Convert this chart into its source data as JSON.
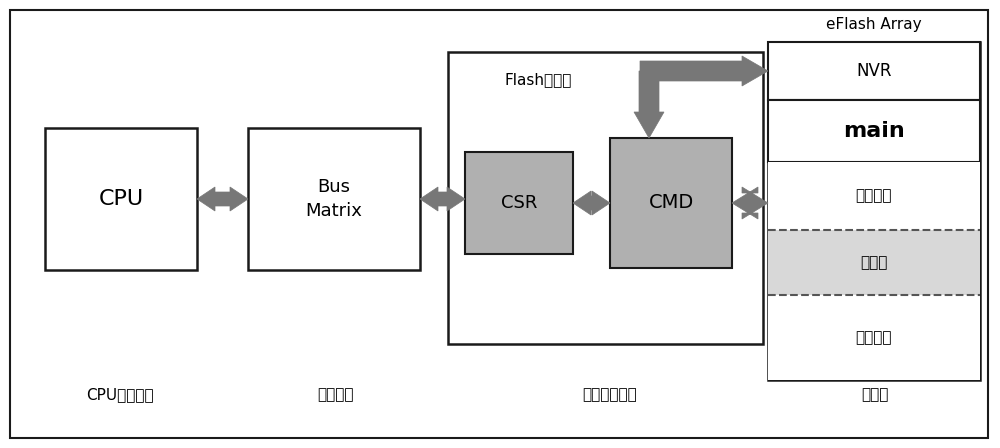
{
  "background_color": "#ffffff",
  "border_color": "#1a1a1a",
  "title_eflash": "eFlash Array",
  "label_cpu": "CPU",
  "label_bus": "Bus\nMatrix",
  "label_csr": "CSR",
  "label_cmd": "CMD",
  "label_flash_ctrl": "Flash控制器",
  "label_nvr": "NVR",
  "label_main": "main",
  "label_non_prot1": "非保护区",
  "label_prot": "保护区",
  "label_non_prot2": "非保护区",
  "caption_cpu": "CPU发出指令",
  "caption_bus": "总线仲裁",
  "caption_flash": "区域设定分配",
  "caption_storage": "存储器",
  "box_color_white": "#ffffff",
  "box_color_light_gray": "#b0b0b0",
  "box_color_protected": "#d8d8d8",
  "arrow_color": "#777777",
  "dashed_line_color": "#555555"
}
